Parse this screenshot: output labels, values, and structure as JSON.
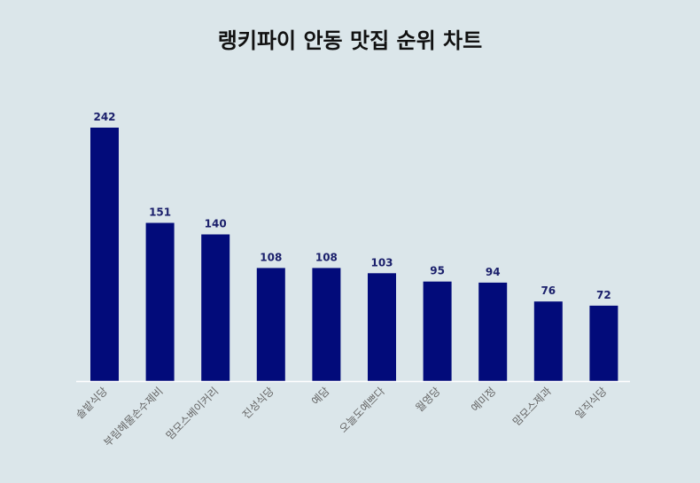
{
  "chart_data": {
    "type": "bar",
    "title": "랭키파이 안동 맛집 순위 차트",
    "categories": [
      "솔밭식당",
      "부림헤물손수제비",
      "맘모스베이커리",
      "진성식당",
      "예담",
      "오늘도예쁘다",
      "월영당",
      "예미정",
      "맘모스제과",
      "일직식당"
    ],
    "values": [
      242,
      151,
      140,
      108,
      108,
      103,
      95,
      94,
      76,
      72
    ],
    "ylim": [
      0,
      242
    ],
    "grid": false,
    "legend": "none",
    "colors": {
      "bar": "#020b7a",
      "label": "#1a1f6b",
      "axis": "#ffffff",
      "background": "#dbe6ea"
    }
  }
}
